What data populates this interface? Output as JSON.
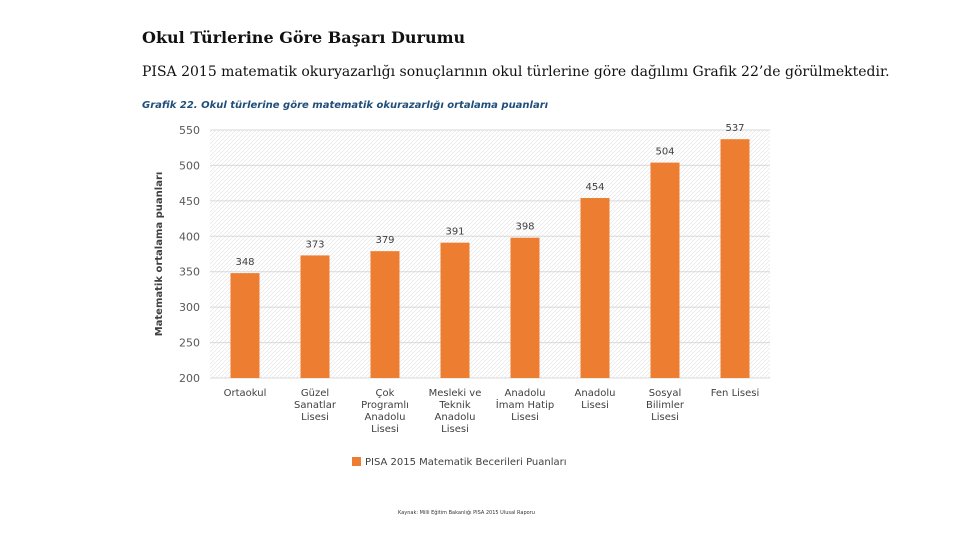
{
  "page": {
    "heading": "Okul Türlerine Göre Başarı Durumu",
    "intro": "PISA 2015 matematik okuryazarlığı sonuçlarının okul türlerine göre dağılımı Grafik 22’de görülmektedir.",
    "chart_title": "Grafik 22. Okul türlerine göre matematik okurazarlığı ortalama puanları",
    "footer": "Kaynak: Milli Eğitim Bakanlığı PISA 2015 Ulusal Raporu"
  },
  "chart_data": {
    "type": "bar",
    "title": "Grafik 22. Okul türlerine göre matematik okurazarlığı ortalama puanları",
    "xlabel": "",
    "ylabel": "Matematik ortalama puanları",
    "ylim": [
      200,
      550
    ],
    "yticks": [
      200,
      250,
      300,
      350,
      400,
      450,
      500,
      550
    ],
    "grid": true,
    "categories": [
      [
        "Ortaokul"
      ],
      [
        "Güzel",
        "Sanatlar",
        "Lisesi"
      ],
      [
        "Çok",
        "Programlı",
        "Anadolu",
        "Lisesi"
      ],
      [
        "Mesleki ve",
        "Teknik",
        "Anadolu",
        "Lisesi"
      ],
      [
        "Anadolu",
        "İmam Hatip",
        "Lisesi"
      ],
      [
        "Anadolu",
        "Lisesi"
      ],
      [
        "Sosyal",
        "Bilimler",
        "Lisesi"
      ],
      [
        "Fen Lisesi"
      ]
    ],
    "series": [
      {
        "name": "PISA 2015 Matematik Becerileri Puanları",
        "color": "#ed7d31",
        "values": [
          348,
          373,
          379,
          391,
          398,
          454,
          504,
          537
        ]
      }
    ],
    "legend_position": "bottom-center"
  }
}
